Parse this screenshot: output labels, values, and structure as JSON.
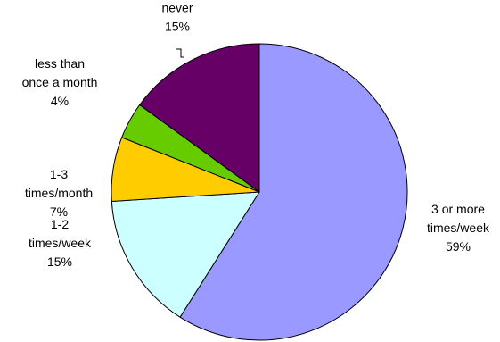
{
  "chart_data": {
    "type": "pie",
    "title": "",
    "slices": [
      {
        "label_lines": [
          "3 or more",
          "times/week"
        ],
        "percent_label": "59%",
        "value": 59,
        "color": "#9999ff"
      },
      {
        "label_lines": [
          "1-2",
          "times/week"
        ],
        "percent_label": "15%",
        "value": 15,
        "color": "#ccffff"
      },
      {
        "label_lines": [
          "1-3",
          "times/month"
        ],
        "percent_label": "7%",
        "value": 7,
        "color": "#ffcc00"
      },
      {
        "label_lines": [
          "less than",
          "once a month"
        ],
        "percent_label": "4%",
        "value": 4,
        "color": "#66cc00"
      },
      {
        "label_lines": [
          "never"
        ],
        "percent_label": "15%",
        "value": 15,
        "color": "#660066"
      }
    ],
    "legend": "none"
  }
}
